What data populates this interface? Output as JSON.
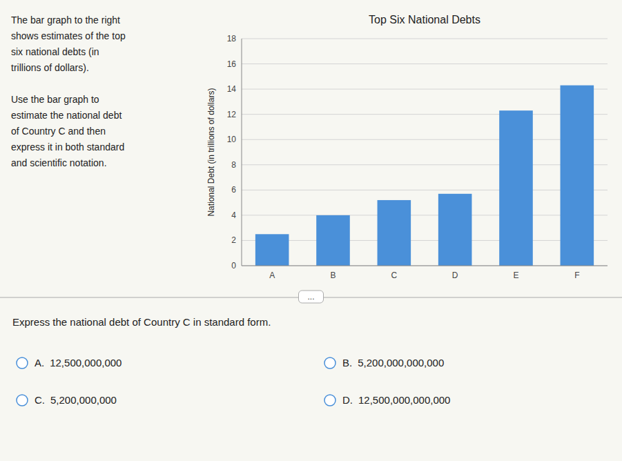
{
  "chart_data": {
    "type": "bar",
    "title": "Top Six National Debts",
    "categories": [
      "A",
      "B",
      "C",
      "D",
      "E",
      "F"
    ],
    "values": [
      2.5,
      4.0,
      5.2,
      5.7,
      12.3,
      14.3
    ],
    "color": "#4a90d9",
    "ylabel": "National Debt (in trillions of dollars)",
    "ylim": [
      0,
      18
    ],
    "yticks": [
      0,
      2,
      4,
      6,
      8,
      10,
      12,
      14,
      16,
      18
    ],
    "grid": true
  },
  "intro_paragraphs": [
    [
      "The bar graph to the right",
      "shows estimates of the top",
      "six national debts (in",
      "trillions of dollars)."
    ],
    [
      "Use the bar graph to",
      "estimate the national debt",
      "of Country C and then",
      "express it in both standard",
      "and scientific notation."
    ]
  ],
  "button_text": "...",
  "question": "Express the national debt of Country C in standard form.",
  "choices": [
    {
      "label": "A.",
      "text": "12,500,000,000"
    },
    {
      "label": "B.",
      "text": "5,200,000,000,000"
    },
    {
      "label": "C.",
      "text": "5,200,000,000"
    },
    {
      "label": "D.",
      "text": "12,500,000,000,000"
    }
  ]
}
